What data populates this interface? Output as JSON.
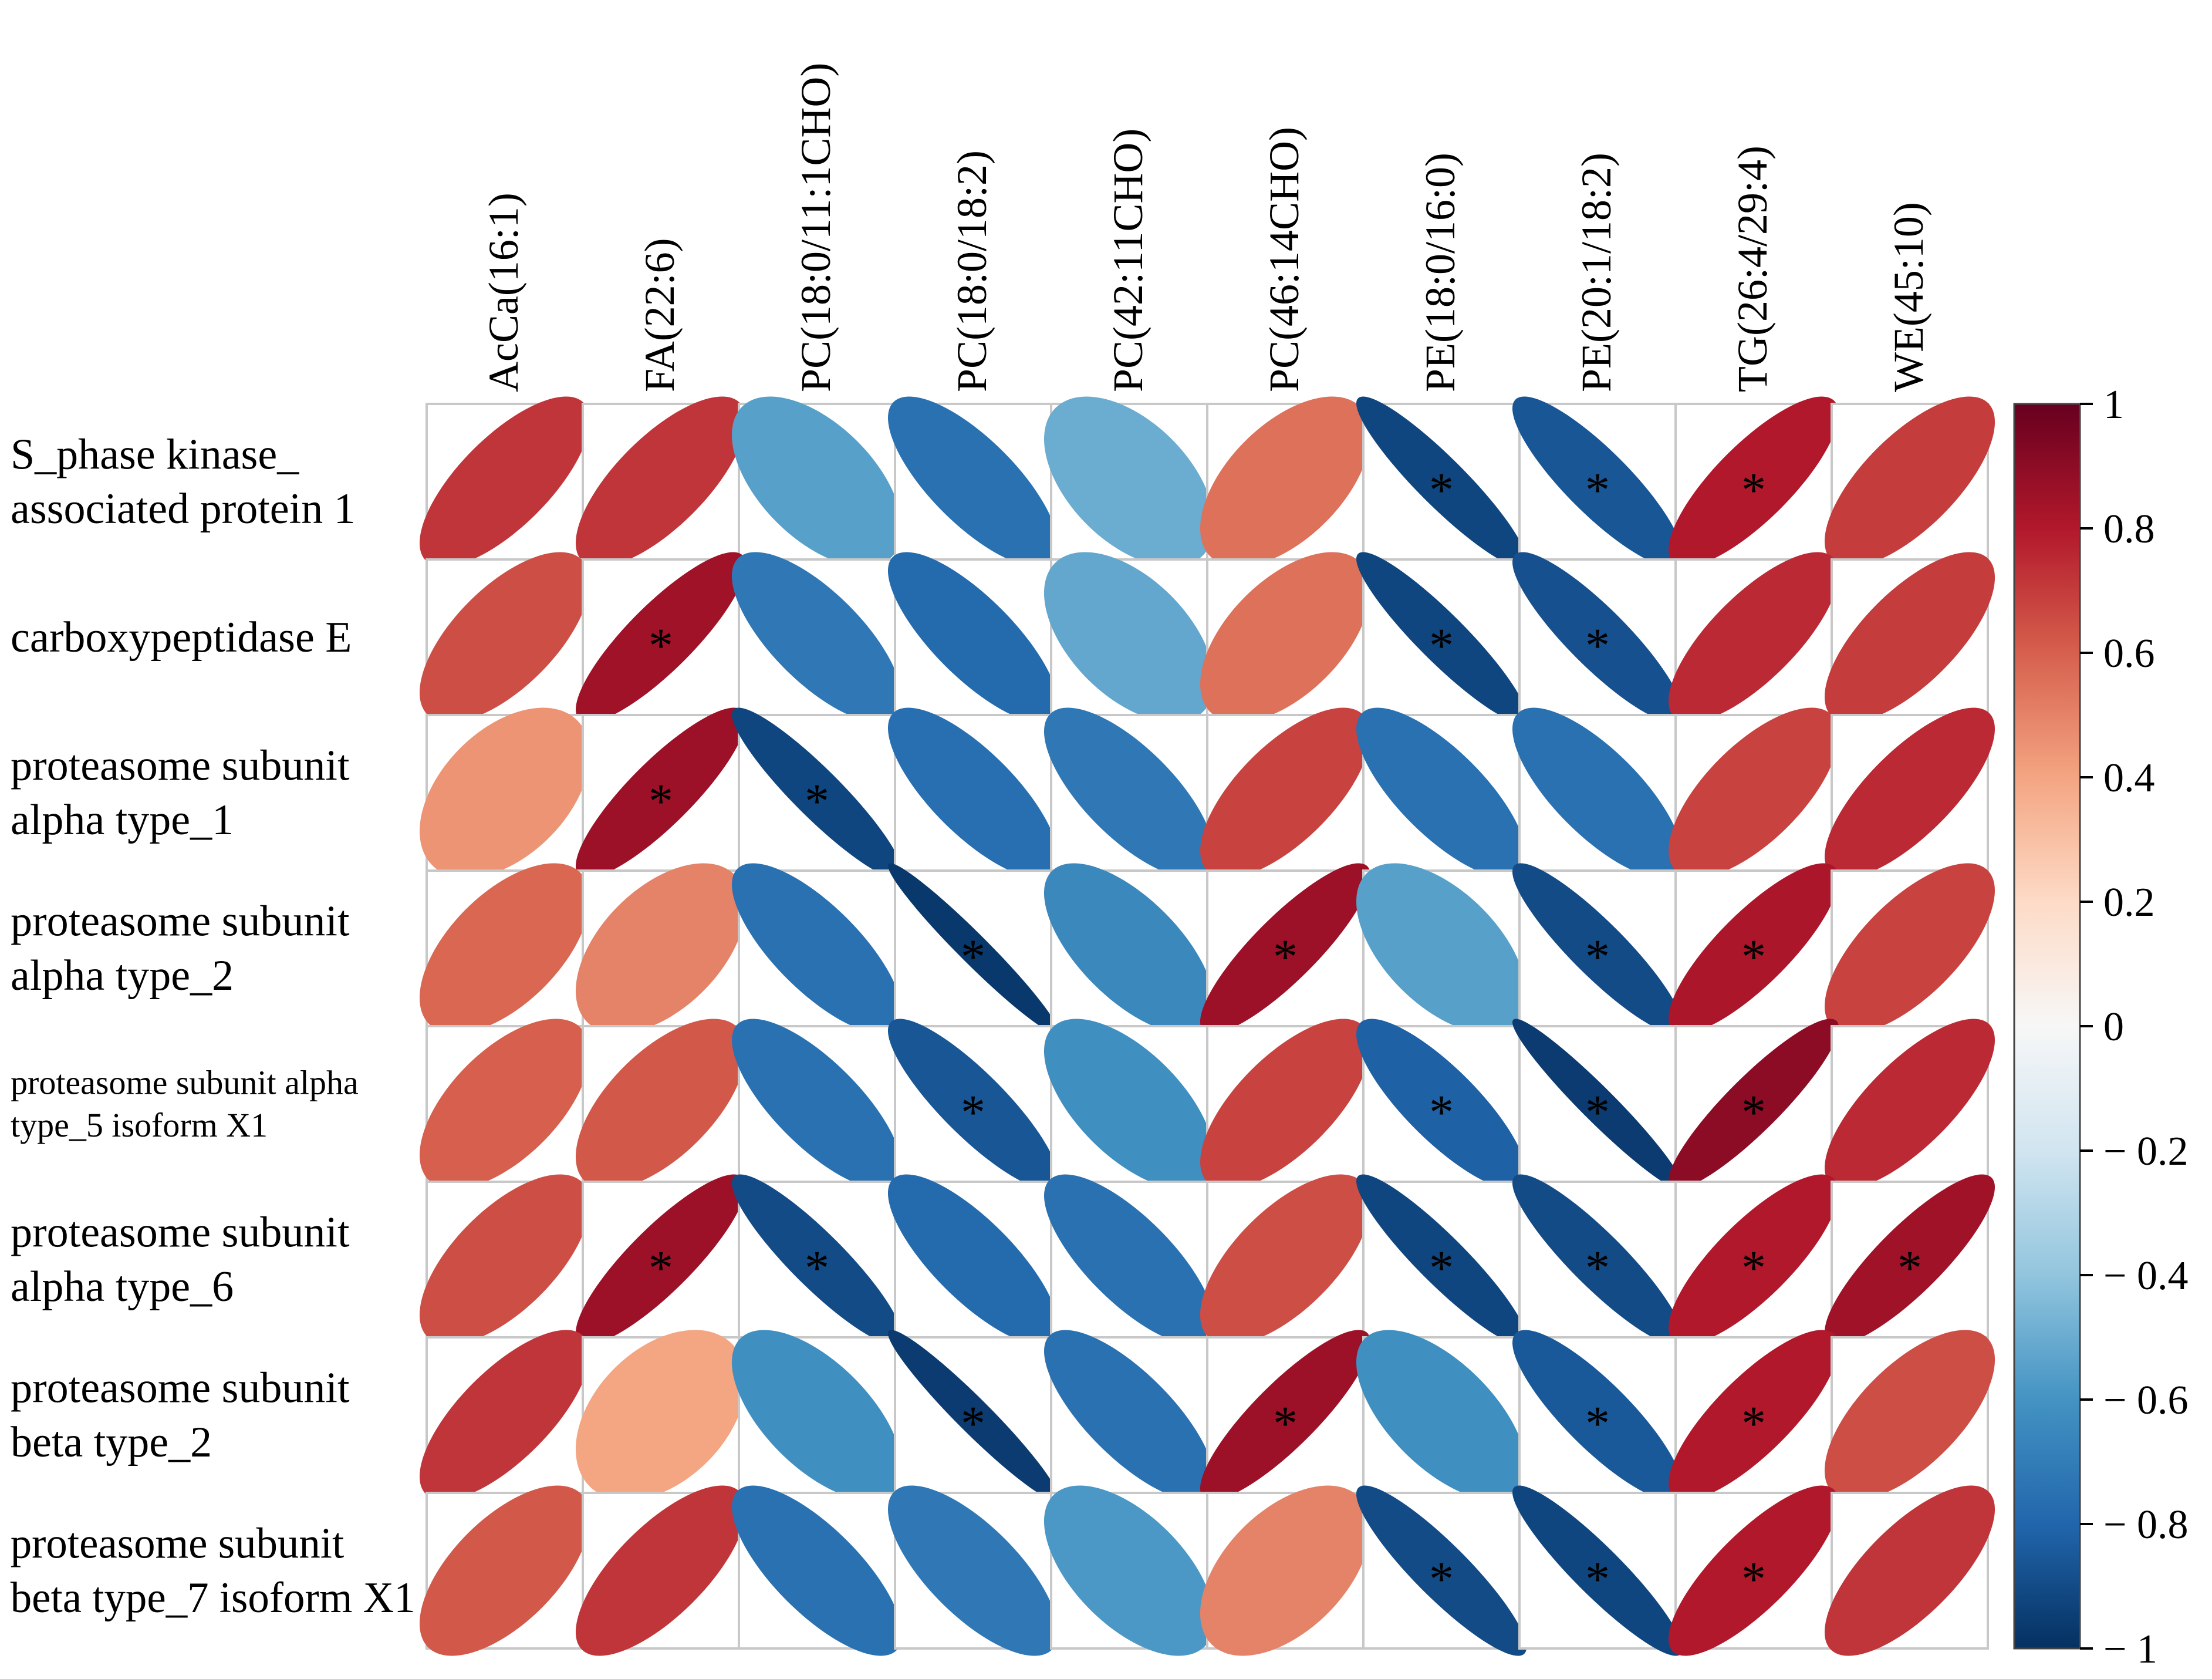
{
  "chart_data": {
    "type": "heatmap",
    "subtype": "correlation-ellipse",
    "title": "",
    "columns": [
      "AcCa(16:1)",
      "FA(22:6)",
      "PC(18:0/11:1CHO)",
      "PC(18:0/18:2)",
      "PC(42:11CHO)",
      "PC(46:14CHO)",
      "PE(18:0/16:0)",
      "PE(20:1/18:2)",
      "TG(26:4/29:4)",
      "WE(45:10)"
    ],
    "rows": [
      {
        "label": [
          "S_phase kinase_",
          "associated protein 1"
        ],
        "values": [
          0.72,
          0.72,
          -0.55,
          -0.75,
          -0.5,
          0.55,
          -0.92,
          -0.86,
          0.8,
          0.7
        ],
        "sig": [
          false,
          false,
          false,
          false,
          false,
          false,
          true,
          true,
          true,
          false
        ]
      },
      {
        "label": [
          "carboxypeptidase E"
        ],
        "values": [
          0.65,
          0.85,
          -0.72,
          -0.78,
          -0.52,
          0.55,
          -0.92,
          -0.88,
          0.75,
          0.7
        ],
        "sig": [
          false,
          true,
          false,
          false,
          false,
          false,
          true,
          true,
          false,
          false
        ]
      },
      {
        "label": [
          "proteasome subunit",
          "alpha type_1"
        ],
        "values": [
          0.45,
          0.86,
          -0.92,
          -0.76,
          -0.72,
          0.68,
          -0.75,
          -0.75,
          0.68,
          0.75
        ],
        "sig": [
          false,
          true,
          true,
          false,
          false,
          false,
          false,
          false,
          false,
          false
        ]
      },
      {
        "label": [
          "proteasome subunit",
          "alpha type_2"
        ],
        "values": [
          0.58,
          0.5,
          -0.75,
          -0.97,
          -0.65,
          0.86,
          -0.55,
          -0.9,
          0.82,
          0.68
        ],
        "sig": [
          false,
          false,
          false,
          true,
          false,
          true,
          false,
          true,
          true,
          false
        ]
      },
      {
        "label": [
          "proteasome subunit alpha",
          "type_5 isoform X1"
        ],
        "values": [
          0.6,
          0.62,
          -0.75,
          -0.86,
          -0.62,
          0.68,
          -0.82,
          -0.96,
          0.9,
          0.75
        ],
        "sig": [
          false,
          false,
          false,
          true,
          false,
          false,
          true,
          true,
          true,
          false
        ]
      },
      {
        "label": [
          "proteasome subunit",
          "alpha type_6"
        ],
        "values": [
          0.65,
          0.86,
          -0.9,
          -0.78,
          -0.75,
          0.65,
          -0.92,
          -0.9,
          0.8,
          0.85
        ],
        "sig": [
          false,
          true,
          true,
          false,
          false,
          false,
          true,
          true,
          true,
          true
        ]
      },
      {
        "label": [
          "proteasome subunit",
          "beta type_2"
        ],
        "values": [
          0.72,
          0.4,
          -0.62,
          -0.96,
          -0.75,
          0.86,
          -0.62,
          -0.85,
          0.8,
          0.65
        ],
        "sig": [
          false,
          false,
          false,
          true,
          false,
          true,
          false,
          true,
          true,
          false
        ]
      },
      {
        "label": [
          "proteasome subunit",
          "beta type_7 isoform X1"
        ],
        "values": [
          0.62,
          0.72,
          -0.75,
          -0.72,
          -0.58,
          0.5,
          -0.9,
          -0.92,
          0.8,
          0.72
        ],
        "sig": [
          false,
          false,
          false,
          false,
          false,
          false,
          true,
          true,
          true,
          false
        ]
      }
    ],
    "colorbar": {
      "range": [
        -1,
        1
      ],
      "ticks": [
        "1",
        "0.8",
        "0.6",
        "0.4",
        "0.2",
        "0",
        "− 0.2",
        "− 0.4",
        "− 0.6",
        "− 0.8",
        "− 1"
      ],
      "colors": [
        "#053061",
        "#2166ac",
        "#4393c3",
        "#92c5de",
        "#d1e5f0",
        "#f7f7f7",
        "#fddbc7",
        "#f4a582",
        "#d6604d",
        "#b2182b",
        "#67001f"
      ]
    },
    "significance_marker": "*"
  }
}
